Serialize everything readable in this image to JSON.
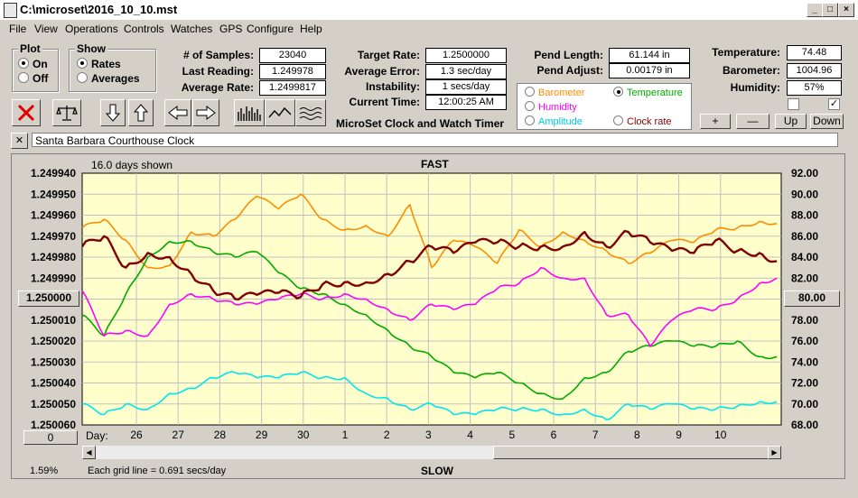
{
  "window": {
    "title": "C:\\microset\\2016_10_10.mst"
  },
  "menu": [
    "File",
    "View",
    "Operations",
    "Controls",
    "Watches",
    "GPS",
    "Configure",
    "Help"
  ],
  "plot_group": {
    "title": "Plot",
    "on_label": "On",
    "off_label": "Off",
    "selected": "On"
  },
  "show_group": {
    "title": "Show",
    "rates_label": "Rates",
    "averages_label": "Averages",
    "selected": "Rates"
  },
  "stats": {
    "samples_label": "# of Samples:",
    "samples": "23040",
    "last_reading_label": "Last Reading:",
    "last_reading": "1.249978",
    "average_rate_label": "Average Rate:",
    "average_rate": "1.2499817",
    "target_rate_label": "Target Rate:",
    "target_rate": "1.2500000",
    "average_error_label": "Average Error:",
    "average_error": "1.3 sec/day",
    "instability_label": "Instability:",
    "instability": "1 secs/day",
    "current_time_label": "Current Time:",
    "current_time": "12:00:25 AM",
    "pend_length_label": "Pend Length:",
    "pend_length": "61.144 in",
    "pend_adjust_label": "Pend Adjust:",
    "pend_adjust": "0.00179 in",
    "temperature_label": "Temperature:",
    "temperature": "74.48",
    "barometer_label": "Barometer:",
    "barometer": "1004.96",
    "humidity_label": "Humidity:",
    "humidity": "57%"
  },
  "app_caption": "MicroSet Clock and Watch Timer",
  "legend": {
    "barometer": "Barometer",
    "temperature": "Temperature",
    "humidity": "Humidity",
    "amplitude": "Amplitude",
    "clock_rate": "Clock rate",
    "selected": "Temperature"
  },
  "right_buttons": {
    "plus": "+",
    "minus": "—",
    "up": "Up",
    "down": "Down"
  },
  "checkboxes": {
    "left_checked": false,
    "right_checked": true
  },
  "clock_name": "Santa Barbara Courthouse Clock",
  "close_label": "✕",
  "chart_header": {
    "days_shown": "16.0 days shown",
    "fast": "FAST",
    "slow": "SLOW",
    "grid_note": "Each grid line = 0.691 secs/day"
  },
  "left_box": "1.250000",
  "left_bottom_box": "0",
  "right_box": "80.00",
  "percent": "1.59%",
  "day_label": "Day:",
  "colors": {
    "chart_bg": "#ffffcc",
    "barometer": "#ff8c00",
    "temperature": "#00aa00",
    "humidity": "#ff00ff",
    "amplitude": "#00e5ee",
    "clock_rate": "#800000"
  },
  "chart_data": {
    "type": "line",
    "left_axis_ticks": [
      "1.249940",
      "1.249950",
      "1.249960",
      "1.249970",
      "1.249980",
      "1.249990",
      "1.250000",
      "1.250010",
      "1.250020",
      "1.250030",
      "1.250040",
      "1.250050",
      "1.250060"
    ],
    "right_axis_ticks": [
      "92.00",
      "90.00",
      "88.00",
      "86.00",
      "84.00",
      "82.00",
      "80.00",
      "78.00",
      "76.00",
      "74.00",
      "72.00",
      "70.00",
      "68.00"
    ],
    "x_labels": [
      "26",
      "27",
      "28",
      "29",
      "30",
      "1",
      "2",
      "3",
      "4",
      "5",
      "6",
      "7",
      "8",
      "9",
      "10"
    ],
    "ylim_left": [
      1.24994,
      1.25006
    ],
    "ylim_right": [
      68,
      92
    ],
    "x_range": [
      0,
      16
    ],
    "series": [
      {
        "name": "Barometer",
        "color": "#ff8c00",
        "axis": "left",
        "x": [
          0,
          0.5,
          1,
          1.5,
          2,
          2.5,
          3,
          3.5,
          4,
          4.5,
          5,
          5.5,
          6,
          6.5,
          7,
          7.5,
          8,
          8.5,
          9,
          9.5,
          10,
          10.5,
          11,
          11.5,
          12,
          12.5,
          13,
          13.5,
          14,
          14.5,
          15,
          15.5,
          15.9
        ],
        "values": [
          1.249966,
          1.249962,
          1.249972,
          1.249985,
          1.249984,
          1.249968,
          1.24997,
          1.249962,
          1.249951,
          1.249957,
          1.24995,
          1.249962,
          1.249967,
          1.249965,
          1.24997,
          1.249955,
          1.249985,
          1.249972,
          1.249975,
          1.249983,
          1.249967,
          1.249975,
          1.249968,
          1.249972,
          1.249977,
          1.249983,
          1.249978,
          1.249972,
          1.249973,
          1.249967,
          1.249966,
          1.249963,
          1.249964
        ]
      },
      {
        "name": "Temperature",
        "color": "#00aa00",
        "axis": "right",
        "x": [
          0,
          0.5,
          1,
          1.5,
          2,
          2.5,
          3,
          3.5,
          4,
          4.5,
          5,
          5.5,
          6,
          6.5,
          7,
          7.5,
          8,
          8.5,
          9,
          9.5,
          10,
          10.5,
          11,
          11.5,
          12,
          12.5,
          13,
          13.5,
          14,
          14.5,
          15,
          15.5,
          15.9
        ],
        "values": [
          78.5,
          76.5,
          80.5,
          84,
          85.5,
          85.5,
          84.5,
          84,
          84.5,
          82.5,
          81,
          80.5,
          79.5,
          78.5,
          77,
          75.5,
          74.5,
          73,
          72.5,
          73,
          72,
          71,
          70.5,
          72.5,
          73,
          75,
          75.5,
          76,
          75.5,
          75.5,
          76,
          74.5,
          74.5
        ]
      },
      {
        "name": "Humidity",
        "color": "#ff00ff",
        "axis": "right",
        "x": [
          0,
          0.5,
          1,
          1.5,
          2,
          2.5,
          3,
          3.5,
          4,
          4.5,
          5,
          5.5,
          6,
          6.5,
          7,
          7.5,
          8,
          8.5,
          9,
          9.5,
          10,
          10.5,
          11,
          11.5,
          12,
          12.5,
          13,
          13.5,
          14,
          14.5,
          15,
          15.5,
          15.9
        ],
        "values": [
          80.8,
          76.5,
          77,
          76.5,
          79.5,
          80.5,
          80,
          79.5,
          79.5,
          80,
          80.5,
          80,
          80.5,
          80,
          79,
          78,
          79.5,
          79,
          79.5,
          81,
          81.5,
          83,
          82,
          82,
          78.5,
          78.5,
          75.5,
          78,
          79,
          79,
          80,
          81.5,
          82
        ]
      },
      {
        "name": "Amplitude",
        "color": "#00e5ee",
        "axis": "right",
        "x": [
          0,
          0.5,
          1,
          1.5,
          2,
          2.5,
          3,
          3.5,
          4,
          4.5,
          5,
          5.5,
          6,
          6.5,
          7,
          7.5,
          8,
          8.5,
          9,
          9.5,
          10,
          10.5,
          11,
          11.5,
          12,
          12.5,
          13,
          13.5,
          14,
          14.5,
          15,
          15.5,
          15.9
        ],
        "values": [
          70,
          69,
          70,
          69.5,
          71,
          71.5,
          72.5,
          73,
          72.5,
          72.5,
          73,
          72.5,
          72.5,
          71,
          70.5,
          69.5,
          70,
          69,
          69,
          69.5,
          69.5,
          69.5,
          69,
          69.5,
          68.5,
          70,
          69.5,
          70,
          69.5,
          69.5,
          69.8,
          70.2,
          70.2
        ]
      },
      {
        "name": "Clock rate",
        "color": "#800000",
        "axis": "left",
        "x": [
          0,
          0.5,
          1,
          1.5,
          2,
          2.5,
          3,
          3.5,
          4,
          4.5,
          5,
          5.5,
          6,
          6.5,
          7,
          7.5,
          8,
          8.5,
          9,
          9.5,
          10,
          10.5,
          11,
          11.5,
          12,
          12.5,
          13,
          13.5,
          14,
          14.5,
          15,
          15.5,
          15.9
        ],
        "values": [
          1.249975,
          1.24997,
          1.249985,
          1.249978,
          1.24998,
          1.249988,
          1.249996,
          1.25,
          1.249998,
          1.249997,
          1.249999,
          1.249993,
          1.249992,
          1.249992,
          1.249988,
          1.249982,
          1.249975,
          1.249978,
          1.249973,
          1.249973,
          1.249975,
          1.249975,
          1.249975,
          1.249968,
          1.249975,
          1.249968,
          1.249973,
          1.249977,
          1.249978,
          1.249972,
          1.249977,
          1.249978,
          1.249982
        ]
      }
    ]
  }
}
